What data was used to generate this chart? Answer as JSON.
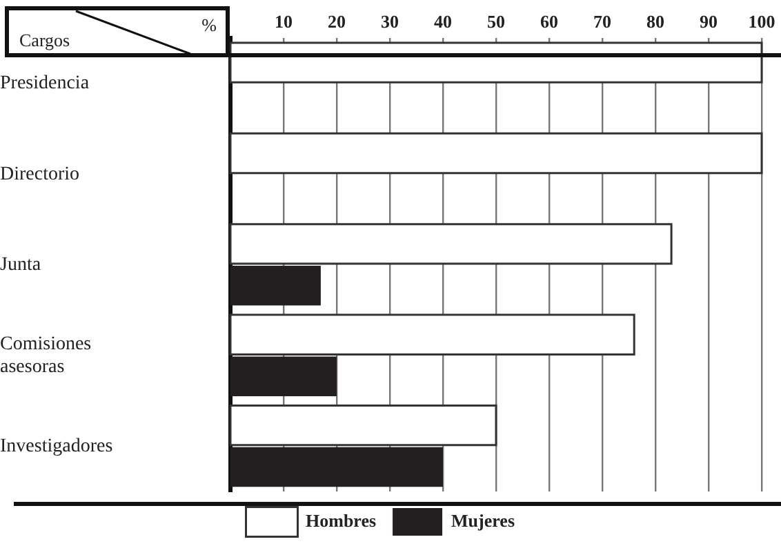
{
  "chart_data": {
    "type": "bar",
    "orientation": "horizontal",
    "xlabel": "%",
    "ylabel": "Cargos",
    "categories": [
      "Presidencia",
      "Directorio",
      "Junta",
      "Comisiones asesoras",
      "Investigadores"
    ],
    "series": [
      {
        "name": "Hombres",
        "color": "#ffffff",
        "values": [
          100,
          100,
          83,
          76,
          50
        ]
      },
      {
        "name": "Mujeres",
        "color": "#231f20",
        "values": [
          0,
          0,
          17,
          20,
          40
        ]
      }
    ],
    "xlim": [
      0,
      100
    ],
    "xticks": [
      10,
      20,
      30,
      40,
      50,
      60,
      70,
      80,
      90,
      100
    ],
    "grid": "x",
    "legend": "bottom"
  }
}
